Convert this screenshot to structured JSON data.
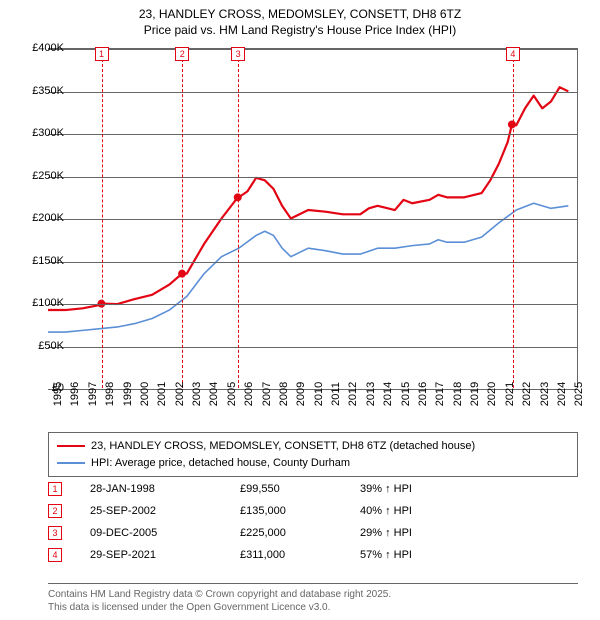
{
  "title_line1": "23, HANDLEY CROSS, MEDOMSLEY, CONSETT, DH8 6TZ",
  "title_line2": "Price paid vs. HM Land Registry's House Price Index (HPI)",
  "chart": {
    "type": "line",
    "background_color": "#ffffff",
    "grid_color": "#666666",
    "ylim": [
      0,
      400000
    ],
    "ytick_step": 50000,
    "yticks": [
      "£0",
      "£50K",
      "£100K",
      "£150K",
      "£200K",
      "£250K",
      "£300K",
      "£350K",
      "£400K"
    ],
    "xlim": [
      1995,
      2025.5
    ],
    "xticks": [
      1995,
      1996,
      1997,
      1998,
      1999,
      2000,
      2001,
      2002,
      2003,
      2004,
      2005,
      2006,
      2007,
      2008,
      2009,
      2010,
      2011,
      2012,
      2013,
      2014,
      2015,
      2016,
      2017,
      2018,
      2019,
      2020,
      2021,
      2022,
      2023,
      2024,
      2025
    ],
    "series": [
      {
        "name": "price_paid",
        "label": "23, HANDLEY CROSS, MEDOMSLEY, CONSETT, DH8 6TZ (detached house)",
        "color": "#e30513",
        "line_width": 2.2,
        "points": [
          [
            1995,
            92000
          ],
          [
            1996,
            92000
          ],
          [
            1997,
            94000
          ],
          [
            1998,
            98000
          ],
          [
            1998.08,
            99550
          ],
          [
            1999,
            99000
          ],
          [
            2000,
            105000
          ],
          [
            2001,
            110000
          ],
          [
            2002,
            122000
          ],
          [
            2002.73,
            135000
          ],
          [
            2003,
            135000
          ],
          [
            2004,
            170000
          ],
          [
            2005,
            200000
          ],
          [
            2005.94,
            225000
          ],
          [
            2006,
            225000
          ],
          [
            2006.5,
            232000
          ],
          [
            2007,
            248000
          ],
          [
            2007.5,
            245000
          ],
          [
            2008,
            235000
          ],
          [
            2008.5,
            215000
          ],
          [
            2009,
            200000
          ],
          [
            2010,
            210000
          ],
          [
            2011,
            208000
          ],
          [
            2012,
            205000
          ],
          [
            2013,
            205000
          ],
          [
            2013.5,
            212000
          ],
          [
            2014,
            215000
          ],
          [
            2015,
            210000
          ],
          [
            2015.5,
            222000
          ],
          [
            2016,
            218000
          ],
          [
            2017,
            222000
          ],
          [
            2017.5,
            228000
          ],
          [
            2018,
            225000
          ],
          [
            2019,
            225000
          ],
          [
            2020,
            230000
          ],
          [
            2020.5,
            245000
          ],
          [
            2021,
            265000
          ],
          [
            2021.5,
            290000
          ],
          [
            2021.75,
            311000
          ],
          [
            2022,
            310000
          ],
          [
            2022.5,
            330000
          ],
          [
            2023,
            345000
          ],
          [
            2023.5,
            330000
          ],
          [
            2024,
            338000
          ],
          [
            2024.5,
            355000
          ],
          [
            2025,
            350000
          ]
        ]
      },
      {
        "name": "hpi",
        "label": "HPI: Average price, detached house, County Durham",
        "color": "#5b8fd6",
        "line_width": 1.6,
        "points": [
          [
            1995,
            66000
          ],
          [
            1996,
            66000
          ],
          [
            1997,
            68000
          ],
          [
            1998,
            70000
          ],
          [
            1999,
            72000
          ],
          [
            2000,
            76000
          ],
          [
            2001,
            82000
          ],
          [
            2002,
            92000
          ],
          [
            2003,
            108000
          ],
          [
            2004,
            135000
          ],
          [
            2005,
            155000
          ],
          [
            2006,
            165000
          ],
          [
            2007,
            180000
          ],
          [
            2007.5,
            185000
          ],
          [
            2008,
            180000
          ],
          [
            2008.5,
            165000
          ],
          [
            2009,
            155000
          ],
          [
            2010,
            165000
          ],
          [
            2011,
            162000
          ],
          [
            2012,
            158000
          ],
          [
            2013,
            158000
          ],
          [
            2014,
            165000
          ],
          [
            2015,
            165000
          ],
          [
            2016,
            168000
          ],
          [
            2017,
            170000
          ],
          [
            2017.5,
            175000
          ],
          [
            2018,
            172000
          ],
          [
            2019,
            172000
          ],
          [
            2020,
            178000
          ],
          [
            2021,
            195000
          ],
          [
            2022,
            210000
          ],
          [
            2023,
            218000
          ],
          [
            2024,
            212000
          ],
          [
            2025,
            215000
          ]
        ]
      }
    ],
    "sale_points": [
      {
        "x": 1998.08,
        "y": 99550,
        "color": "#e30513"
      },
      {
        "x": 2002.73,
        "y": 135000,
        "color": "#e30513"
      },
      {
        "x": 2005.94,
        "y": 225000,
        "color": "#e30513"
      },
      {
        "x": 2021.75,
        "y": 311000,
        "color": "#e30513"
      }
    ],
    "markers": [
      {
        "n": "1",
        "x": 1998.08,
        "color": "#e30513"
      },
      {
        "n": "2",
        "x": 2002.73,
        "color": "#e30513"
      },
      {
        "n": "3",
        "x": 2005.94,
        "color": "#e30513"
      },
      {
        "n": "4",
        "x": 2021.75,
        "color": "#e30513"
      }
    ]
  },
  "legend": {
    "border_color": "#666666"
  },
  "events": [
    {
      "n": "1",
      "date": "28-JAN-1998",
      "price": "£99,550",
      "note": "39% ↑ HPI",
      "color": "#e30513"
    },
    {
      "n": "2",
      "date": "25-SEP-2002",
      "price": "£135,000",
      "note": "40% ↑ HPI",
      "color": "#e30513"
    },
    {
      "n": "3",
      "date": "09-DEC-2005",
      "price": "£225,000",
      "note": "29% ↑ HPI",
      "color": "#e30513"
    },
    {
      "n": "4",
      "date": "29-SEP-2021",
      "price": "£311,000",
      "note": "57% ↑ HPI",
      "color": "#e30513"
    }
  ],
  "footer_line1": "Contains HM Land Registry data © Crown copyright and database right 2025.",
  "footer_line2": "This data is licensed under the Open Government Licence v3.0."
}
